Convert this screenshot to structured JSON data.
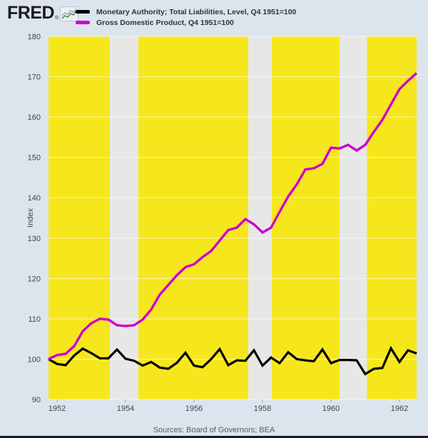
{
  "page": {
    "background": "#dce4ed"
  },
  "header": {
    "logo_text": "FRED",
    "logo_registered": "®",
    "logo_icon": "sparkline-chart-icon",
    "legend": [
      {
        "label": "Monetary Authority; Total Liabilities, Level, Q4 1951=100",
        "color": "#000000"
      },
      {
        "label": "Gross Domestic Product, Q4 1951=100",
        "color": "#cc00cc"
      }
    ]
  },
  "footer": {
    "sources": "Sources: Board of Governors; BEA"
  },
  "chart_data": {
    "type": "line",
    "title": "",
    "xlabel": "",
    "ylabel": "Index",
    "ylim": [
      90,
      180
    ],
    "yticks": [
      90,
      100,
      110,
      120,
      130,
      140,
      150,
      160,
      170,
      180
    ],
    "xlim": [
      1951.75,
      1962.5
    ],
    "xticks": [
      1952,
      1954,
      1956,
      1958,
      1960,
      1962
    ],
    "x_start": 1951.75,
    "x_step": 0.25,
    "grid": "horizontal",
    "plot_bg": "#f6e71d",
    "recession_band_color": "#e7e7e5",
    "grid_color": "rgba(255,255,255,0.6)",
    "tick_color": "#9aa2ac",
    "label_color": "#444444",
    "recession_bands": [
      [
        1953.54,
        1954.37
      ],
      [
        1957.58,
        1958.27
      ],
      [
        1960.25,
        1961.05
      ]
    ],
    "series": [
      {
        "name": "Monetary Authority; Total Liabilities, Level, Q4 1951=100",
        "color": "#000000",
        "width": 3.2,
        "values": [
          100.0,
          98.8,
          98.5,
          100.9,
          102.6,
          101.5,
          100.2,
          100.2,
          102.4,
          100.1,
          99.6,
          98.4,
          99.3,
          97.9,
          97.6,
          99.1,
          101.6,
          98.4,
          98.0,
          100.0,
          102.5,
          98.5,
          99.7,
          99.6,
          102.2,
          98.4,
          100.4,
          99.0,
          101.7,
          100.0,
          99.7,
          99.5,
          102.4,
          99.0,
          99.8,
          99.8,
          99.7,
          96.3,
          97.6,
          97.8,
          102.7,
          99.3,
          102.2,
          101.4
        ]
      },
      {
        "name": "Gross Domestic Product, Q4 1951=100",
        "color": "#cc00cc",
        "width": 3.4,
        "values": [
          100.0,
          101.0,
          101.3,
          103.2,
          106.9,
          108.9,
          110.0,
          109.8,
          108.4,
          108.2,
          108.4,
          109.8,
          112.3,
          116.0,
          118.4,
          120.8,
          122.8,
          123.5,
          125.3,
          126.8,
          129.4,
          132.0,
          132.6,
          134.7,
          133.4,
          131.4,
          132.6,
          136.5,
          140.3,
          143.3,
          147.0,
          147.3,
          148.4,
          152.4,
          152.2,
          153.1,
          151.7,
          153.1,
          156.3,
          159.3,
          163.1,
          166.9,
          169.0,
          170.9
        ]
      }
    ]
  }
}
